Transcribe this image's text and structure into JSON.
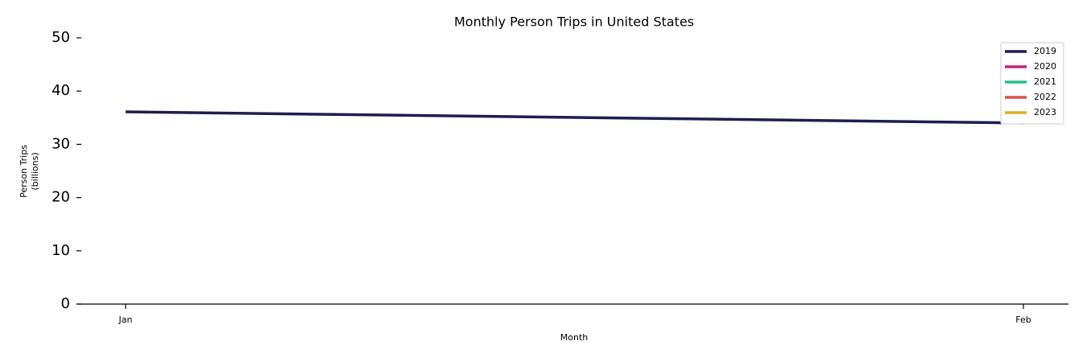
{
  "chart_data": {
    "type": "line",
    "title": "Monthly Person Trips in United States",
    "x_label": "Month",
    "y_label": [
      "Person Trips",
      "(billions)"
    ],
    "categories": [
      "Jan",
      "Feb"
    ],
    "series": [
      {
        "name": "2019",
        "color": "#1c1f4e",
        "values": [
          36.1,
          34.0
        ]
      },
      {
        "name": "2020",
        "color": "#c2237c",
        "values": [
          null,
          null
        ]
      },
      {
        "name": "2021",
        "color": "#26c08a",
        "values": [
          null,
          null
        ]
      },
      {
        "name": "2022",
        "color": "#d9534a",
        "values": [
          null,
          null
        ]
      },
      {
        "name": "2023",
        "color": "#d8b21c",
        "values": [
          null,
          null
        ]
      }
    ],
    "ylim": [
      0,
      50
    ],
    "yticks": [
      0,
      10,
      20,
      30,
      40,
      50
    ],
    "grid": false,
    "legend": "upper right"
  }
}
